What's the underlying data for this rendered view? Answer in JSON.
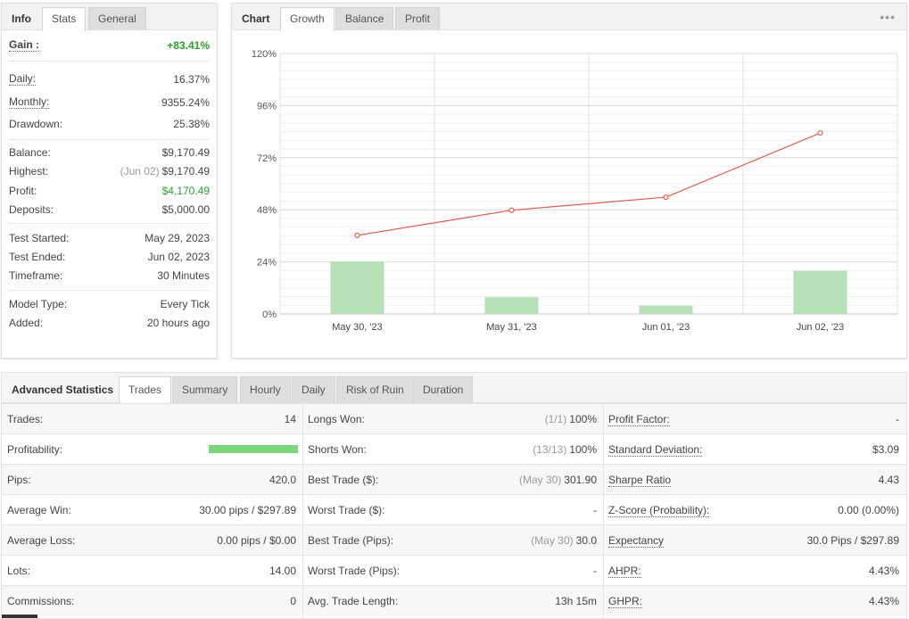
{
  "left": {
    "tabs": [
      "Info",
      "Stats",
      "General"
    ],
    "rows": [
      {
        "label": "Gain :",
        "value": "+83.41%"
      },
      {
        "label": "Daily:",
        "value": "16.37%"
      },
      {
        "label": "Monthly:",
        "value": "9355.24%"
      },
      {
        "label": "Drawdown:",
        "value": "25.38%"
      },
      {
        "label": "Balance:",
        "value": "$9,170.49"
      },
      {
        "label": "Highest:",
        "prefix": "(Jun 02)",
        "value": "$9,170.49"
      },
      {
        "label": "Profit:",
        "value": "$4,170.49"
      },
      {
        "label": "Deposits:",
        "value": "$5,000.00"
      },
      {
        "label": "Test Started:",
        "value": "May 29, 2023"
      },
      {
        "label": "Test Ended:",
        "value": "Jun 02, 2023"
      },
      {
        "label": "Timeframe:",
        "value": "30 Minutes"
      },
      {
        "label": "Model Type:",
        "value": "Every Tick"
      },
      {
        "label": "Added:",
        "value": "20 hours ago"
      }
    ]
  },
  "chart_panel": {
    "tabs": [
      "Chart",
      "Growth",
      "Balance",
      "Profit"
    ],
    "menu_icon": "more-dots-icon"
  },
  "chart_data": {
    "type": "bar",
    "categories": [
      "May 30, '23",
      "May 31, '23",
      "Jun 01, '23",
      "Jun 02, '23"
    ],
    "series": [
      {
        "type": "bar",
        "values": [
          24.2,
          7.7,
          3.8,
          19.9
        ],
        "color": "#b6e0b6"
      },
      {
        "type": "line",
        "values": [
          36.2,
          47.8,
          53.8,
          83.4
        ],
        "color": "#e05a4e"
      }
    ],
    "yticks": [
      "120%",
      "96%",
      "72%",
      "48%",
      "24%",
      "0%"
    ],
    "ylim": [
      0,
      120
    ],
    "grid": true
  },
  "advanced": {
    "tabs": [
      "Advanced Statistics",
      "Trades",
      "Summary",
      "Hourly",
      "Daily",
      "Risk of Ruin",
      "Duration"
    ],
    "col1": [
      {
        "label": "Trades:",
        "value": "14"
      },
      {
        "label": "Profitability:",
        "value": "",
        "bar_fraction": 1.0
      },
      {
        "label": "Pips:",
        "value": "420.0"
      },
      {
        "label": "Average Win:",
        "value": "30.00 pips / $297.89"
      },
      {
        "label": "Average Loss:",
        "value": "0.00 pips / $0.00"
      },
      {
        "label": "Lots:",
        "value": "14.00"
      },
      {
        "label": "Commissions:",
        "value": "0"
      }
    ],
    "col2": [
      {
        "label": "Longs Won:",
        "prefix": "(1/1)",
        "value": "100%"
      },
      {
        "label": "Shorts Won:",
        "prefix": "(13/13)",
        "value": "100%"
      },
      {
        "label": "Best Trade ($):",
        "prefix": "(May 30)",
        "value": "301.90"
      },
      {
        "label": "Worst Trade ($):",
        "prefix": "",
        "value": "-"
      },
      {
        "label": "Best Trade (Pips):",
        "prefix": "(May 30)",
        "value": "30.0"
      },
      {
        "label": "Worst Trade (Pips):",
        "prefix": "",
        "value": "-"
      },
      {
        "label": "Avg. Trade Length:",
        "prefix": "",
        "value": "13h 15m"
      }
    ],
    "col3": [
      {
        "label": "Profit Factor:",
        "value": "-"
      },
      {
        "label": "Standard Deviation:",
        "value": "$3.09"
      },
      {
        "label": "Sharpe Ratio",
        "value": "4.43"
      },
      {
        "label": "Z-Score (Probability):",
        "value": "0.00 (0.00%)"
      },
      {
        "label": "Expectancy",
        "value": "30.0 Pips / $297.89"
      },
      {
        "label": "AHPR:",
        "value": "4.43%"
      },
      {
        "label": "GHPR:",
        "value": "4.43%"
      }
    ]
  },
  "colors": {
    "positive": "#2aa12a",
    "bar": "#b6e0b6",
    "line": "#e05a4e",
    "profit_bar": "#7dd67d"
  }
}
